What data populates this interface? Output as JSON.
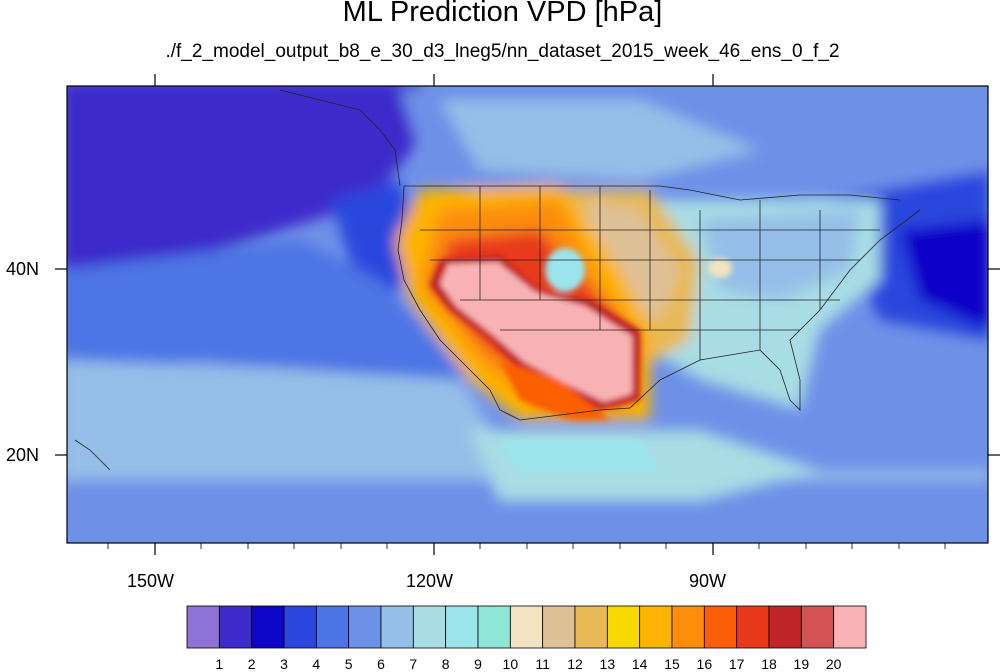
{
  "title": "ML Prediction VPD [hPa]",
  "subtitle": "./f_2_model_output_b8_e_30_d3_lneg5/nn_dataset_2015_week_46_ens_0_f_2",
  "map": {
    "projection": "lat-lon",
    "lon_range": [
      -161,
      -63
    ],
    "lat_range": [
      10.5,
      59
    ],
    "x_ticks": [
      "150W",
      "120W",
      "90W"
    ],
    "y_ticks": [
      "40N",
      "20N"
    ]
  },
  "colorbar": {
    "labels": [
      "1",
      "2",
      "3",
      "4",
      "5",
      "6",
      "7",
      "8",
      "9",
      "10",
      "11",
      "12",
      "13",
      "14",
      "15",
      "16",
      "17",
      "18",
      "19",
      "20"
    ],
    "colors": [
      "#8f72d8",
      "#3d2ccb",
      "#0d06c8",
      "#2b47dd",
      "#4d74e5",
      "#6e91e8",
      "#95bfe8",
      "#a8dde5",
      "#9be4ec",
      "#8ee6d7",
      "#f2e4c0",
      "#dfc197",
      "#e8b955",
      "#f9d800",
      "#fdb300",
      "#fd8d0a",
      "#fa5e06",
      "#e83a1b",
      "#bf2427",
      "#d35354",
      "#f9b2b4"
    ]
  }
}
